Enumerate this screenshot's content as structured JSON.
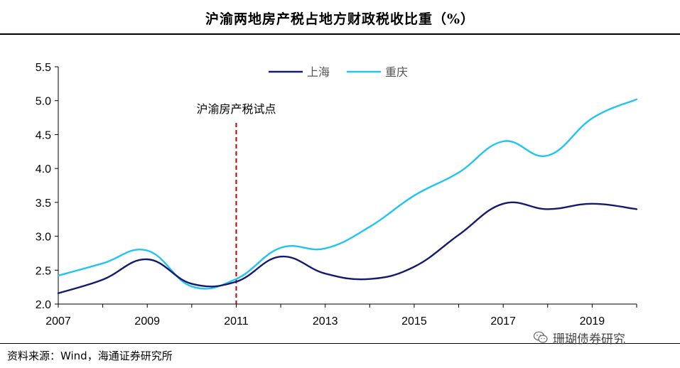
{
  "header": {
    "title": "沪渝两地房产税占地方财政税收比重（%）"
  },
  "footer": {
    "source": "资料来源：Wind，海通证券研究所"
  },
  "watermark": {
    "text": "珊瑚债券研究",
    "icon": "wechat-icon"
  },
  "colors": {
    "shanghai": "#141a6e",
    "chongqing": "#21c4f2",
    "marker": "#c00000"
  },
  "chart_data": {
    "type": "line",
    "title": "沪渝两地房产税占地方财政税收比重（%）",
    "xlabel": "",
    "ylabel": "",
    "xlim": [
      2007,
      2020
    ],
    "ylim": [
      2.0,
      5.5
    ],
    "yticks": [
      2.0,
      2.5,
      3.0,
      3.5,
      4.0,
      4.5,
      5.0,
      5.5
    ],
    "ytick_labels": [
      "2.0",
      "2.5",
      "3.0",
      "3.5",
      "4.0",
      "4.5",
      "5.0",
      "5.5"
    ],
    "xticks": [
      2007,
      2009,
      2011,
      2013,
      2015,
      2017,
      2019
    ],
    "xtick_labels": [
      "2007",
      "2009",
      "2011",
      "2013",
      "2015",
      "2017",
      "2019"
    ],
    "grid": false,
    "legend_position": "top-center",
    "x": [
      2007,
      2008,
      2009,
      2010,
      2011,
      2012,
      2013,
      2014,
      2015,
      2016,
      2017,
      2018,
      2019,
      2020
    ],
    "series": [
      {
        "name": "上海",
        "color": "#141a6e",
        "values": [
          2.16,
          2.36,
          2.66,
          2.3,
          2.33,
          2.7,
          2.45,
          2.37,
          2.55,
          3.02,
          3.48,
          3.4,
          3.48,
          3.4
        ]
      },
      {
        "name": "重庆",
        "color": "#21c4f2",
        "values": [
          2.42,
          2.6,
          2.79,
          2.26,
          2.37,
          2.83,
          2.82,
          3.14,
          3.6,
          3.94,
          4.4,
          4.19,
          4.74,
          5.02
        ]
      }
    ],
    "annotations": [
      {
        "text": "沪渝房产税试点",
        "x": 2011,
        "style": "dashed-vertical-line"
      }
    ]
  }
}
